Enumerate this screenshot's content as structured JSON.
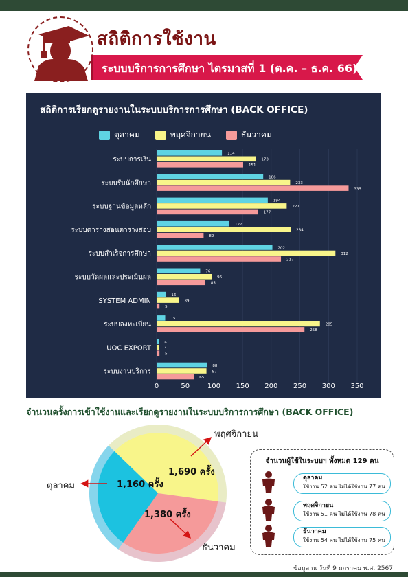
{
  "header": {
    "title": "สถิติการใช้งาน",
    "subtitle": "ระบบบริการการศึกษา ไตรมาสที่ 1 (ต.ค. – ธ.ค. 66)"
  },
  "chart_data": [
    {
      "type": "bar",
      "orientation": "horizontal",
      "title": "สถิติการเรียกดูรายงานในระบบบริการการศึกษา (BACK OFFICE)",
      "categories": [
        "ระบบการเงิน",
        "ระบบรับนักศึกษา",
        "ระบบฐานข้อมูลหลัก",
        "ระบบตารางสอนตารางสอบ",
        "ระบบสำเร็จการศึกษา",
        "ระบบวัดผลและประเมินผล",
        "SYSTEM ADMIN",
        "ระบบลงทะเบียน",
        "UOC EXPORT",
        "ระบบงานบริการ"
      ],
      "series": [
        {
          "name": "ตุลาคม",
          "color": "#5fd3e3",
          "values": [
            114,
            186,
            194,
            127,
            202,
            76,
            16,
            15,
            4,
            88
          ]
        },
        {
          "name": "พฤศจิกายน",
          "color": "#f8f58a",
          "values": [
            173,
            233,
            227,
            234,
            312,
            96,
            39,
            285,
            4,
            87
          ]
        },
        {
          "name": "ธันวาคม",
          "color": "#f59a9a",
          "values": [
            151,
            335,
            177,
            82,
            217,
            85,
            5,
            258,
            5,
            65
          ]
        }
      ],
      "value_labels": [
        [
          "114",
          "173",
          "151"
        ],
        [
          "186",
          "233",
          "335"
        ],
        [
          "194",
          "227",
          "177"
        ],
        [
          "127",
          "234",
          "82"
        ],
        [
          "202",
          "312",
          "217"
        ],
        [
          "76",
          "96",
          "85"
        ],
        [
          "16",
          "39",
          "5"
        ],
        [
          "15",
          "285",
          "258"
        ],
        [
          "4",
          "4",
          "5"
        ],
        [
          "88",
          "87",
          "65"
        ]
      ],
      "xlim": [
        0,
        350
      ],
      "xticks": [
        "0",
        "50",
        "100",
        "150",
        "200",
        "250",
        "300",
        "350"
      ],
      "legend": "top"
    },
    {
      "type": "pie",
      "title": "จำนวนครั้งการเข้าใช้งานและเรียกดูรายงานในระบบบริการการศึกษา (BACK OFFICE)",
      "slices": [
        {
          "name": "ตุลาคม",
          "value": 1160,
          "label": "1,160 ครั้ง",
          "color": "#1cc2e0"
        },
        {
          "name": "พฤศจิกายน",
          "value": 1690,
          "label": "1,690 ครั้ง",
          "color": "#f8f58a"
        },
        {
          "name": "ธันวาคม",
          "value": 1380,
          "label": "1,380 ครั้ง",
          "color": "#f59a9a"
        }
      ]
    }
  ],
  "users": {
    "title": "จำนวนผู้ใช้ในระบบฯ ทั้งหมด 129 คน",
    "rows": [
      {
        "name": "ตุลาคม",
        "desc": "ใช้งาน 52 คน ไม่ได้ใช้งาน 77 คน",
        "color": "#1cc2e0",
        "used": 52,
        "total": 129
      },
      {
        "name": "พฤศจิกายน",
        "desc": "ใช้งาน 51 คน ไม่ได้ใช้งาน 78 คน",
        "color": "#f8f58a",
        "used": 51,
        "total": 129
      },
      {
        "name": "ธันวาคม",
        "desc": "ใช้งาน 54 คน ไม่ได้ใช้งาน 75 คน",
        "color": "#f59a9a",
        "used": 54,
        "total": 129
      }
    ]
  },
  "footer": "ข้อมูล ณ วันที่ 9 มกราคม พ.ศ. 2567",
  "icons": [
    "graduate-icon",
    "person-icon"
  ]
}
